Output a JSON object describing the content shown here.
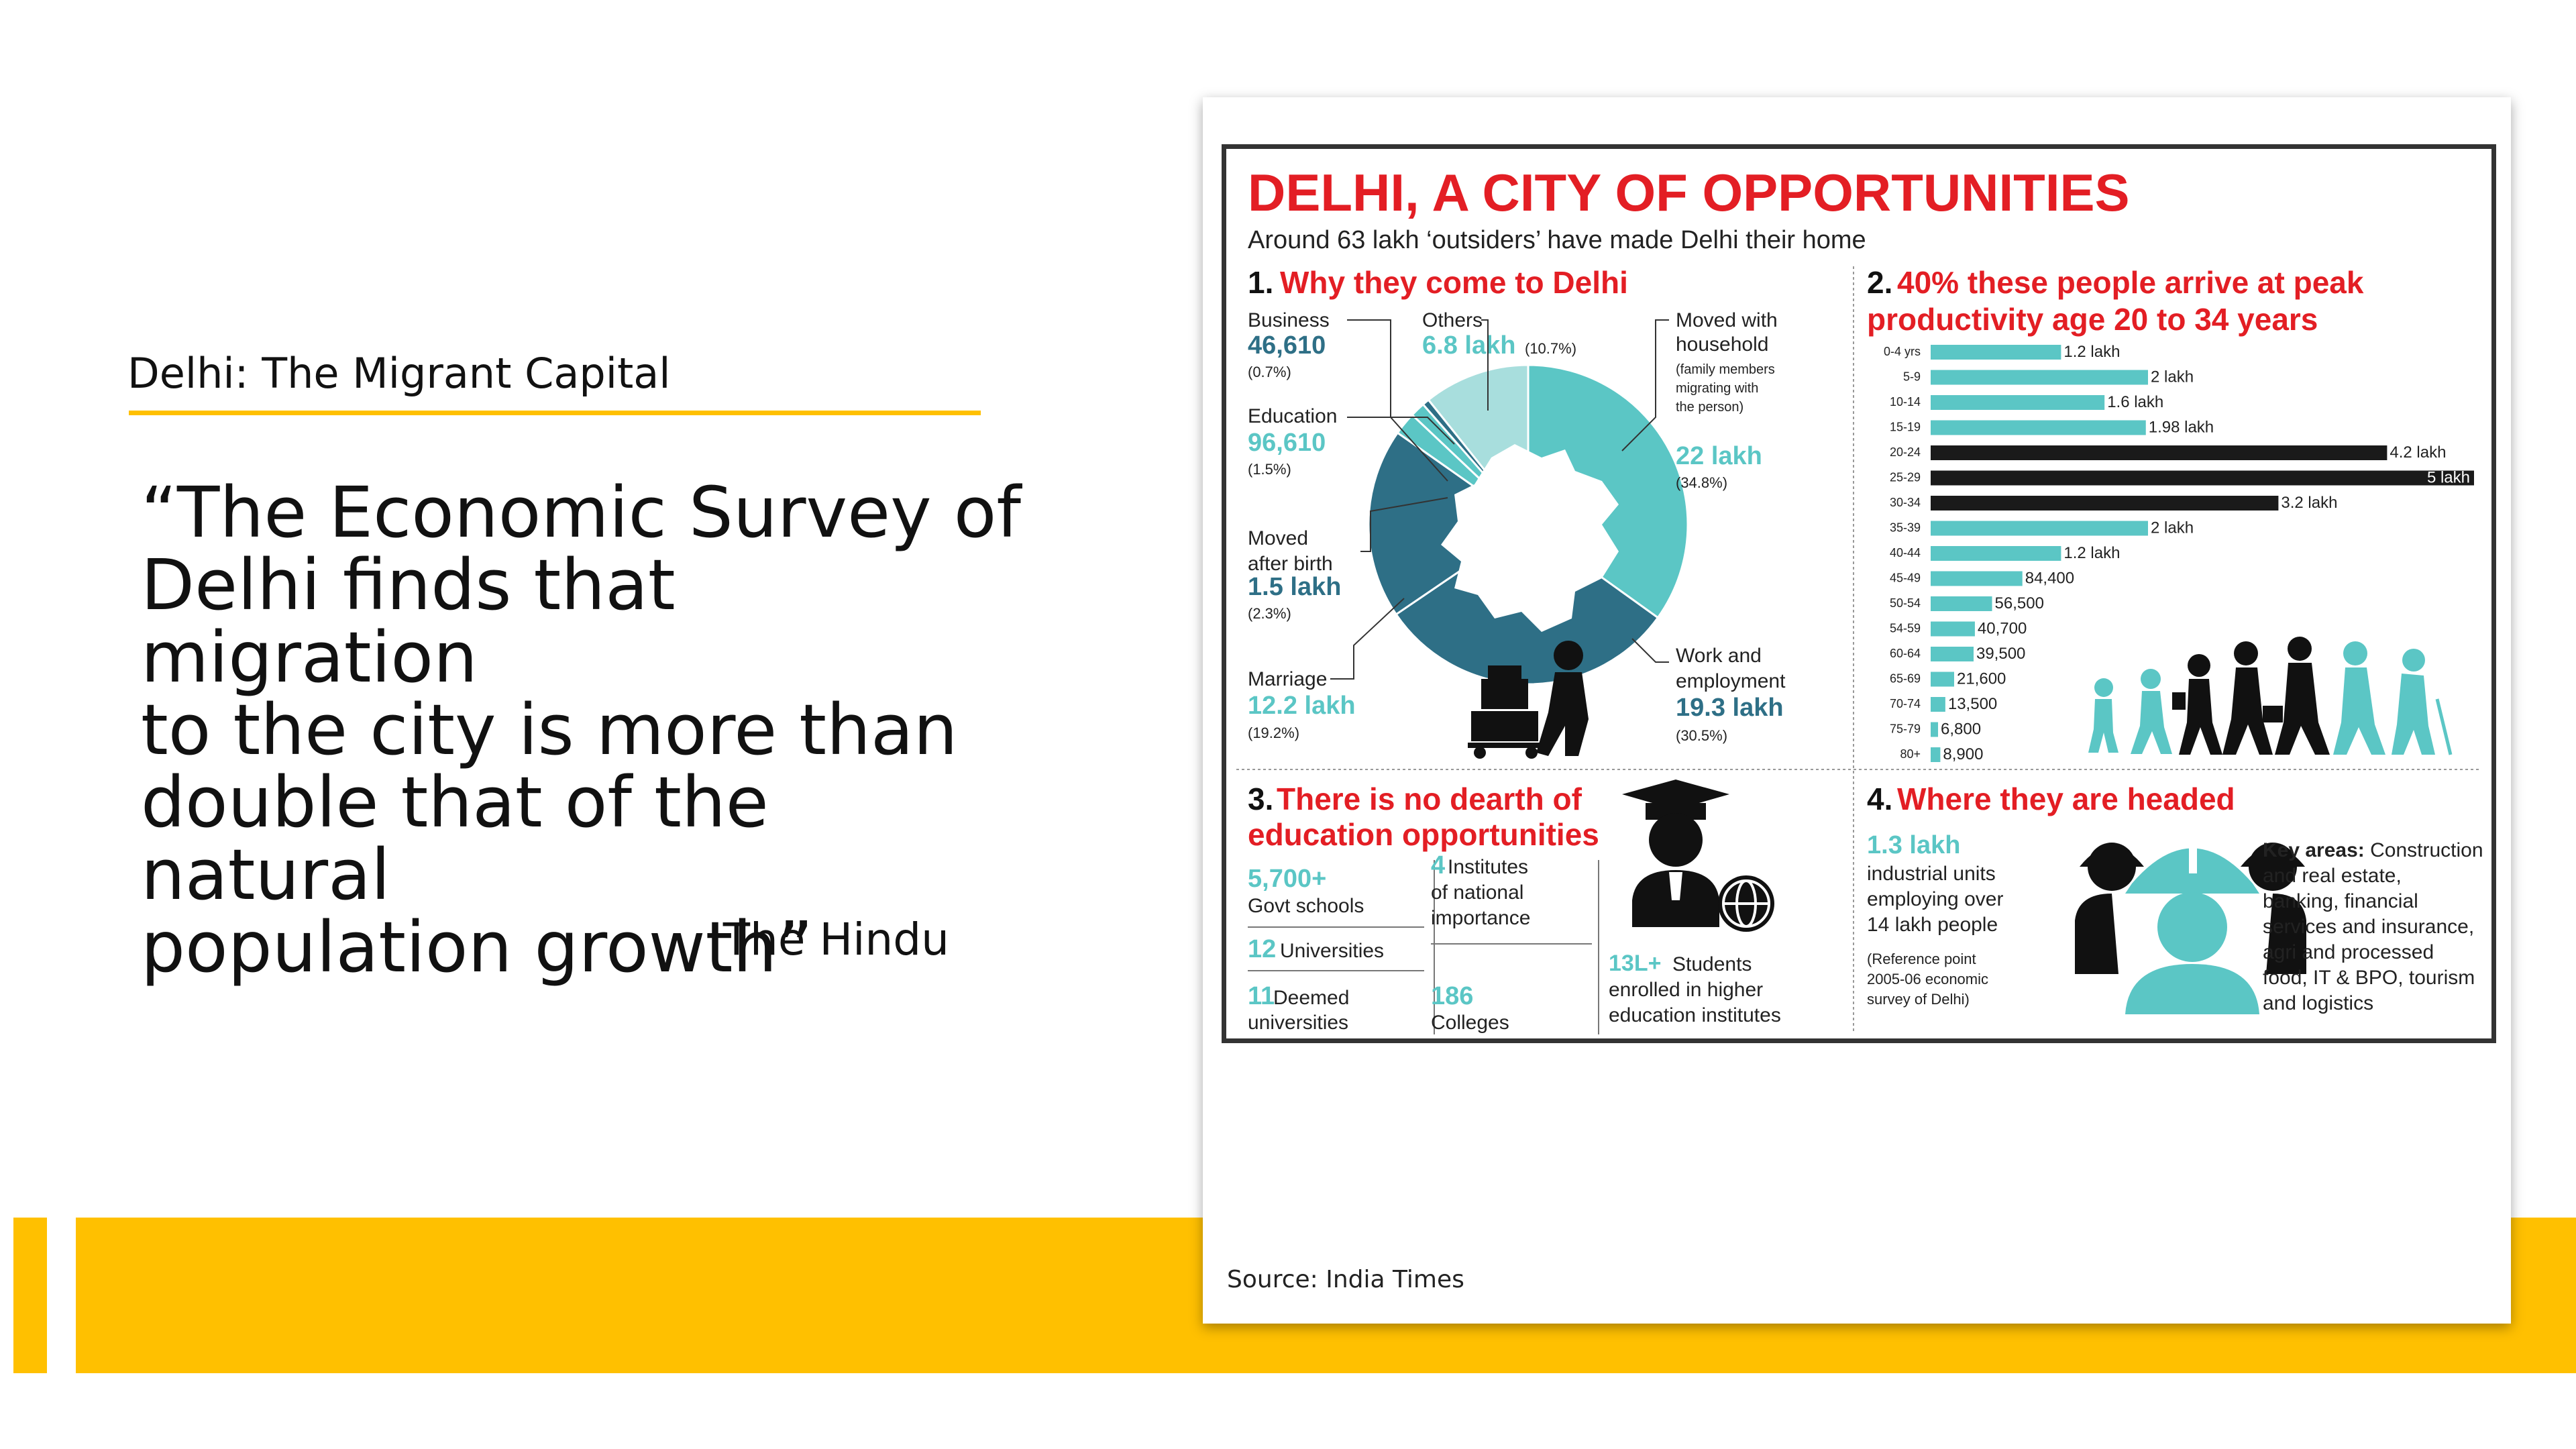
{
  "slide": {
    "title": "Delhi: The Migrant Capital",
    "quote_lines": [
      "“The Economic Survey of",
      "Delhi finds that migration",
      "to the city is more than",
      "double that of the natural",
      "population growth”"
    ],
    "quote_source": "The Hindu",
    "image_source": "Source: India Times",
    "colors": {
      "accent": "#ffc000",
      "teal": "#5bc6c5",
      "red": "#e31e24",
      "dark_teal": "#2e6f86"
    }
  },
  "infographic": {
    "title": "DELHI, A CITY OF OPPORTUNITIES",
    "subtitle": "Around 63 lakh ‘outsiders’ have made Delhi their home",
    "section1": {
      "number": "1.",
      "heading": "Why they come to Delhi",
      "slices": [
        {
          "label": "Moved with household",
          "note": [
            "(family members",
            "migrating with",
            "the person)"
          ],
          "value": "22 lakh",
          "pct": "(34.8%)",
          "share": 34.8
        },
        {
          "label": "Work and employment",
          "value": "19.3 lakh",
          "pct": "(30.5%)",
          "share": 30.5
        },
        {
          "label": "Marriage",
          "value": "12.2 lakh",
          "pct": "(19.2%)",
          "share": 19.2
        },
        {
          "label": "Moved after birth",
          "value": "1.5 lakh",
          "pct": "(2.3%)",
          "share": 2.3
        },
        {
          "label": "Education",
          "value": "96,610",
          "pct": "(1.5%)",
          "share": 1.5
        },
        {
          "label": "Business",
          "value": "46,610",
          "pct": "(0.7%)",
          "share": 0.7
        },
        {
          "label": "Others",
          "value": "6.8 lakh",
          "pct": "(10.7%)",
          "share": 10.7
        }
      ]
    },
    "section2": {
      "number": "2.",
      "heading_lines": [
        "40% these people arrive at peak",
        "productivity age 20 to 34 years"
      ]
    },
    "chart_data": {
      "type": "bar",
      "orientation": "horizontal",
      "categories": [
        "0-4 yrs",
        "5-9",
        "10-14",
        "15-19",
        "20-24",
        "25-29",
        "30-34",
        "35-39",
        "40-44",
        "45-49",
        "50-54",
        "54-59",
        "60-64",
        "65-69",
        "70-74",
        "75-79",
        "80+"
      ],
      "values": [
        120000,
        200000,
        160000,
        198000,
        420000,
        500000,
        320000,
        200000,
        120000,
        84400,
        56500,
        40700,
        39500,
        21600,
        13500,
        6800,
        8900
      ],
      "value_labels": [
        "1.2 lakh",
        "2 lakh",
        "1.6 lakh",
        "1.98 lakh",
        "4.2 lakh",
        "5 lakh",
        "3.2 lakh",
        "2 lakh",
        "1.2 lakh",
        "84,400",
        "56,500",
        "40,700",
        "39,500",
        "21,600",
        "13,500",
        "6,800",
        "8,900"
      ],
      "highlight": [
        "20-24",
        "25-29",
        "30-34"
      ],
      "xlim": [
        0,
        500000
      ]
    },
    "section3": {
      "number": "3.",
      "heading_lines": [
        "There is no dearth of",
        "education opportunities"
      ],
      "items": [
        {
          "value": "5,700+",
          "label": "Govt schools"
        },
        {
          "value": "12",
          "label": "Universities"
        },
        {
          "value": "11",
          "label": "Deemed",
          "label2": "universities"
        },
        {
          "value": "4",
          "label": "Institutes",
          "label2": "of national",
          "label3": "importance"
        },
        {
          "value": "186",
          "label": "Colleges"
        },
        {
          "value": "13L+",
          "label": "Students",
          "label2": "enrolled in higher",
          "label3": "education institutes"
        }
      ]
    },
    "section4": {
      "number": "4.",
      "heading": "Where they are headed",
      "value": "1.3 lakh",
      "lines": [
        "industrial units",
        "employing over",
        "14 lakh people"
      ],
      "ref_lines": [
        "(Reference point",
        "2005-06 economic",
        "survey of Delhi)"
      ],
      "key_label": "Key areas:",
      "key_lines": [
        " Construction",
        "and real estate,",
        "banking, financial",
        "services and insurance,",
        "agri and processed",
        "food, IT & BPO, tourism",
        "and logistics"
      ]
    }
  }
}
